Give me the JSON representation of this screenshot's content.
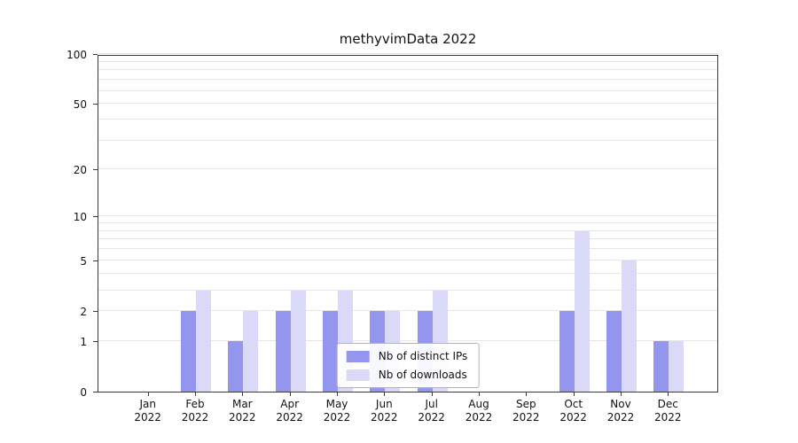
{
  "title": "methyvimData 2022",
  "chart_data": {
    "type": "bar",
    "title": "methyvimData 2022",
    "categories": [
      "Jan",
      "Feb",
      "Mar",
      "Apr",
      "May",
      "Jun",
      "Jul",
      "Aug",
      "Sep",
      "Oct",
      "Nov",
      "Dec"
    ],
    "year": "2022",
    "series": [
      {
        "name": "Nb of distinct IPs",
        "color": "#9495ee",
        "values": [
          0,
          2,
          1,
          2,
          2,
          2,
          2,
          0,
          0,
          2,
          2,
          1
        ]
      },
      {
        "name": "Nb of downloads",
        "color": "#dadaf8",
        "values": [
          0,
          3,
          2,
          3,
          3,
          2,
          3,
          0,
          0,
          8,
          5,
          1
        ]
      }
    ],
    "y_axis": {
      "scale": "log1p",
      "ticks": [
        0,
        1,
        2,
        5,
        10,
        20,
        50,
        100
      ],
      "max": 100
    },
    "gridlines": [
      1,
      2,
      3,
      4,
      5,
      6,
      7,
      8,
      9,
      10,
      20,
      30,
      40,
      50,
      60,
      70,
      80,
      90,
      100
    ],
    "legend_position": "bottom-center-inside",
    "grid": true
  }
}
